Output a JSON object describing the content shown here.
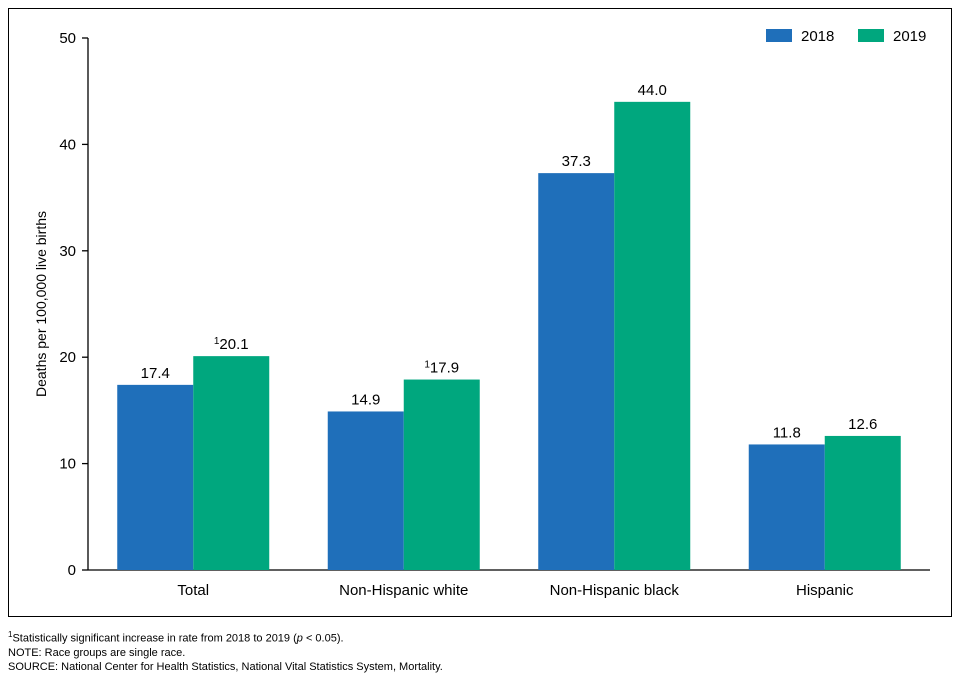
{
  "chart_data": {
    "type": "bar",
    "categories": [
      "Total",
      "Non-Hispanic white",
      "Non-Hispanic black",
      "Hispanic"
    ],
    "series": [
      {
        "name": "2018",
        "color": "#1f6fba",
        "values": [
          17.4,
          14.9,
          37.3,
          11.8
        ],
        "labels": [
          "17.4",
          "14.9",
          "37.3",
          "11.8"
        ],
        "label_marks": [
          "",
          "",
          "",
          ""
        ]
      },
      {
        "name": "2019",
        "color": "#00a77e",
        "values": [
          20.1,
          17.9,
          44.0,
          12.6
        ],
        "labels": [
          "20.1",
          "17.9",
          "44.0",
          "12.6"
        ],
        "label_marks": [
          "1",
          "1",
          "",
          ""
        ]
      }
    ],
    "ylabel": "Deaths per 100,000 live births",
    "ylim": [
      0,
      50
    ],
    "yticks": [
      0,
      10,
      20,
      30,
      40,
      50
    ],
    "grid": false,
    "legend_position": "top-right"
  },
  "footnotes": {
    "note1_mark": "1",
    "note1_text_a": "Statistically significant increase in rate from 2018 to 2019 (",
    "note1_p": "p",
    "note1_text_b": " < 0.05).",
    "note2": "NOTE: Race groups are single race.",
    "source": "SOURCE: National Center for Health Statistics, National Vital Statistics System, Mortality."
  }
}
